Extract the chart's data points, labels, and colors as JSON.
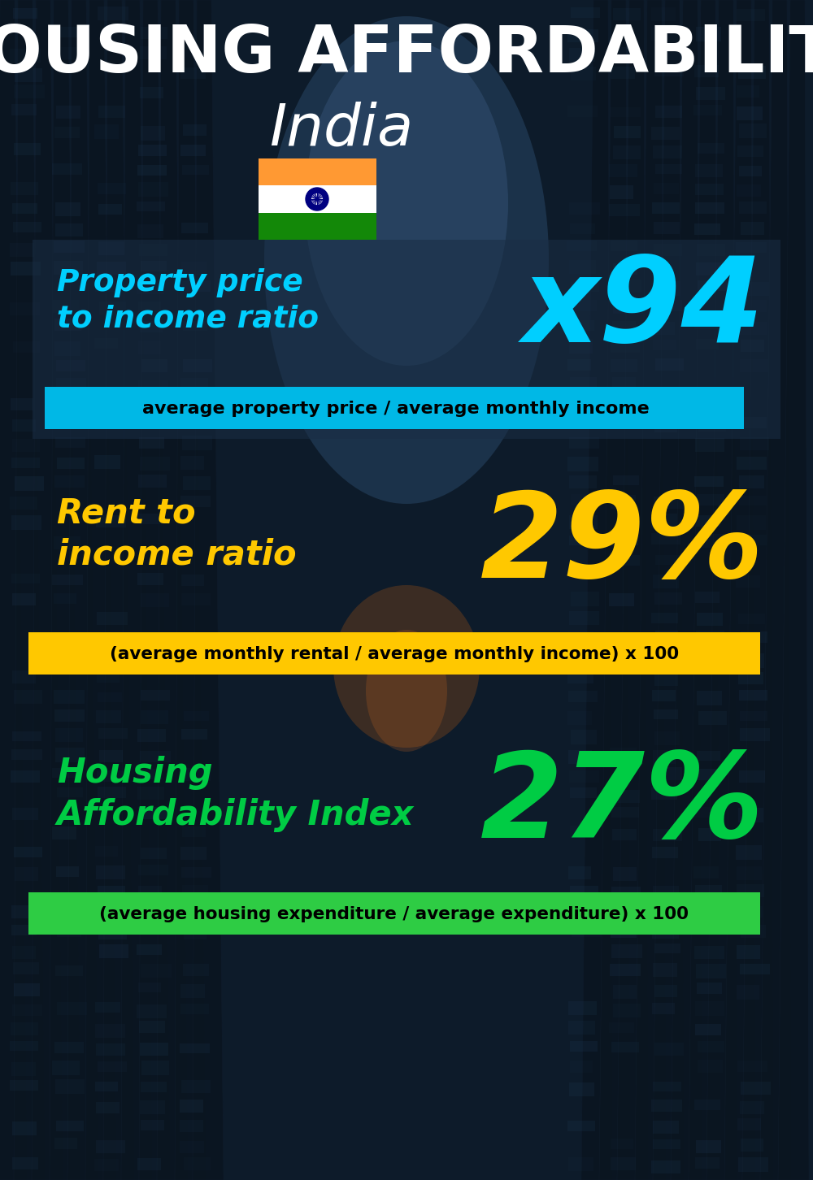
{
  "title_line1": "HOUSING AFFORDABILITY",
  "title_line2": "India",
  "bg_color": "#0d1b2a",
  "section1_label": "Property price\nto income ratio",
  "section1_value": "x94",
  "section1_label_color": "#00cfff",
  "section1_value_color": "#00cfff",
  "section1_banner_text": "average property price / average monthly income",
  "section1_banner_bg": "#00b8e6",
  "section1_banner_text_color": "#000000",
  "section1_box_bg": "#1a2e45",
  "section2_label": "Rent to\nincome ratio",
  "section2_value": "29%",
  "section2_label_color": "#ffc800",
  "section2_value_color": "#ffc800",
  "section2_banner_text": "(average monthly rental / average monthly income) x 100",
  "section2_banner_bg": "#ffc800",
  "section2_banner_text_color": "#000000",
  "section3_label": "Housing\nAffordability Index",
  "section3_value": "27%",
  "section3_label_color": "#00cc44",
  "section3_value_color": "#00cc44",
  "section3_banner_text": "(average housing expenditure / average expenditure) x 100",
  "section3_banner_bg": "#2ecc44",
  "section3_banner_text_color": "#000000",
  "title_color": "#ffffff",
  "country_color": "#ffffff",
  "figwidth": 10.0,
  "figheight": 14.52,
  "dpi": 100
}
